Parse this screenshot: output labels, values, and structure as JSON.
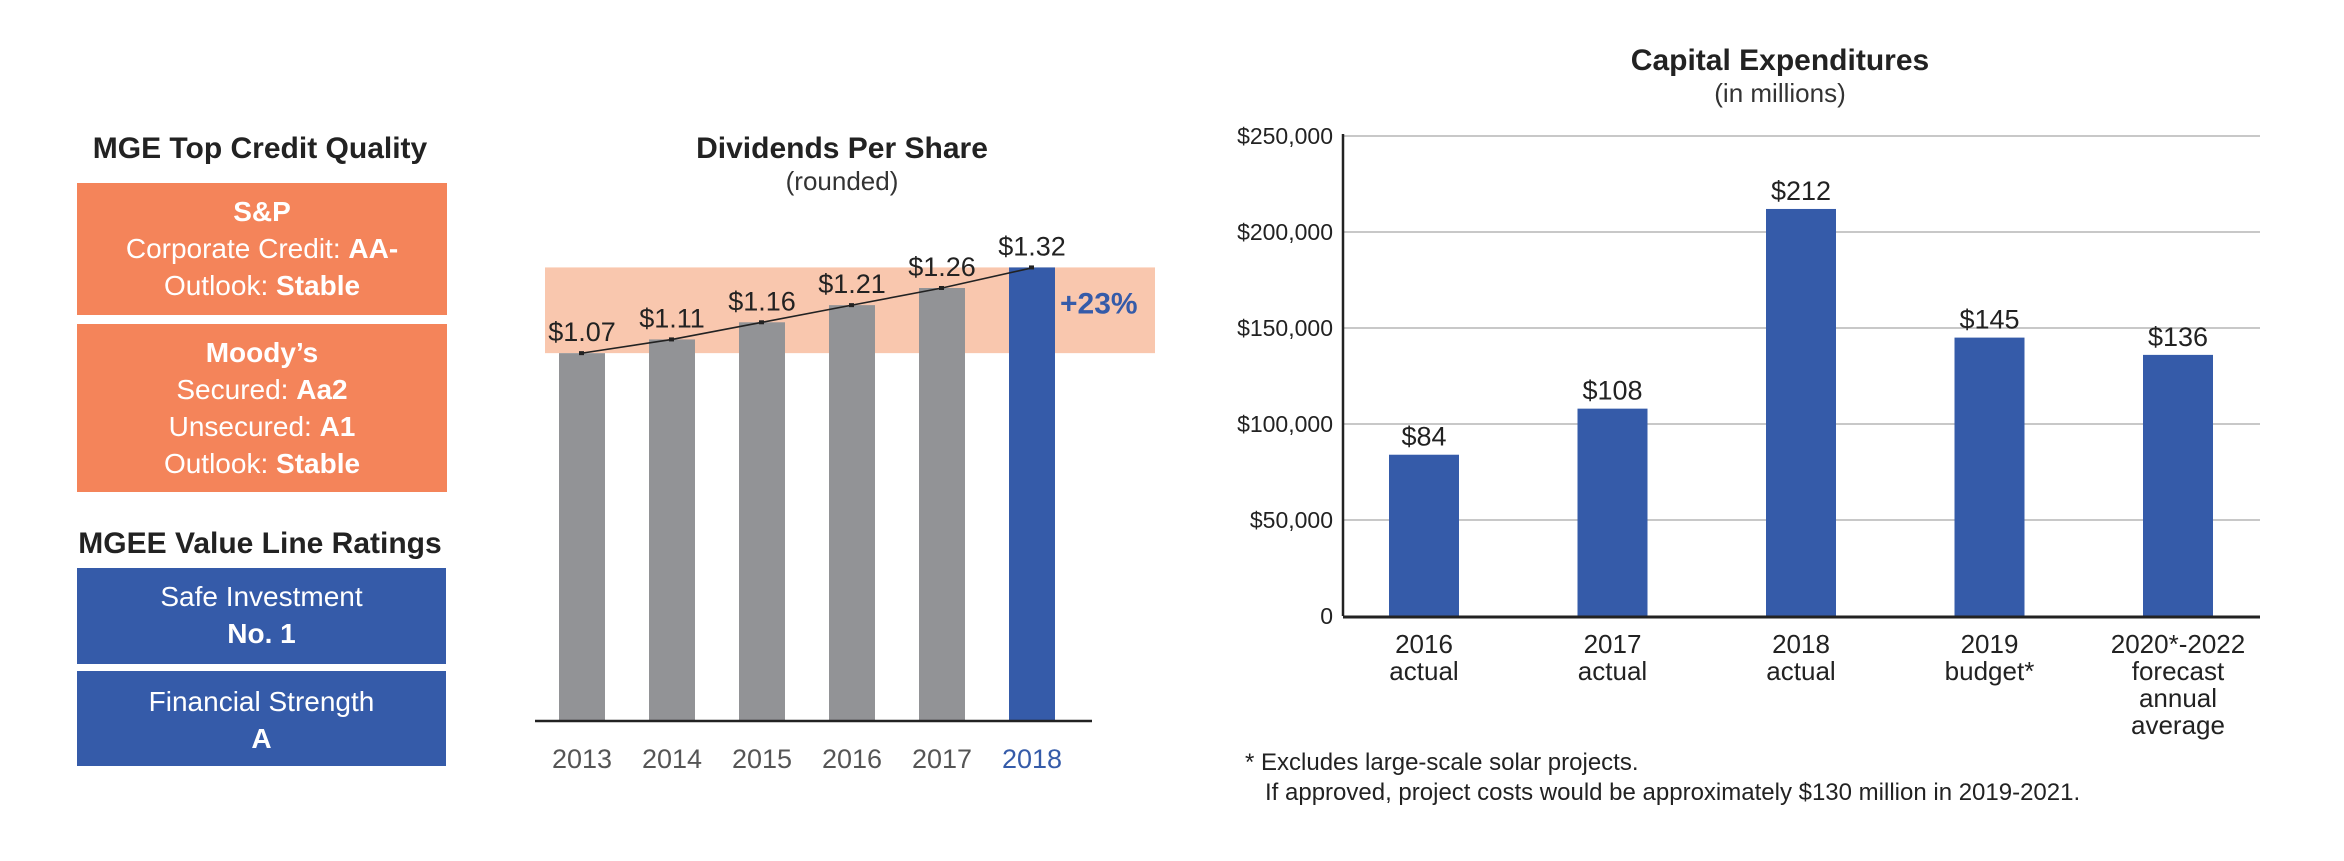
{
  "credit": {
    "title": "MGE Top Credit Quality",
    "sp": {
      "heading": "S&P",
      "corp_label": "Corporate Credit: ",
      "corp_value": "AA-",
      "outlook_label": "Outlook: ",
      "outlook_value": "Stable"
    },
    "moodys": {
      "heading": "Moody’s",
      "secured_label": "Secured: ",
      "secured_value": "Aa2",
      "unsecured_label": "Unsecured: ",
      "unsecured_value": "A1",
      "outlook_label": "Outlook: ",
      "outlook_value": "Stable"
    }
  },
  "valueline": {
    "title": "MGEE Value Line Ratings",
    "safe_label": "Safe Investment",
    "safe_value": "No. 1",
    "fin_label": "Financial Strength",
    "fin_value": "A"
  },
  "colors": {
    "orange": "#f4845a",
    "blue": "#355ba9",
    "gray": "#929396",
    "band": "#f9c7ae"
  },
  "chart_data": [
    {
      "type": "bar",
      "title": "Dividends Per Share",
      "subtitle": "(rounded)",
      "categories": [
        "2013",
        "2014",
        "2015",
        "2016",
        "2017",
        "2018"
      ],
      "values": [
        1.07,
        1.11,
        1.16,
        1.21,
        1.26,
        1.32
      ],
      "labels": [
        "$1.07",
        "$1.11",
        "$1.16",
        "$1.21",
        "$1.26",
        "$1.32"
      ],
      "highlight_index": 5,
      "annotation": "+23%",
      "trend_line": true,
      "ylim": [
        0,
        1.4
      ]
    },
    {
      "type": "bar",
      "title": "Capital Expenditures",
      "subtitle": "(in millions)",
      "categories": [
        [
          "2016",
          "actual"
        ],
        [
          "2017",
          "actual"
        ],
        [
          "2018",
          "actual"
        ],
        [
          "2019",
          "budget*"
        ],
        [
          "2020*-2022",
          "forecast",
          "annual",
          "average"
        ]
      ],
      "values": [
        84,
        108,
        212,
        145,
        136
      ],
      "labels": [
        "$84",
        "$108",
        "$212",
        "$145",
        "$136"
      ],
      "yticks": [
        "0",
        "$50,000",
        "$100,000",
        "$150,000",
        "$200,000",
        "$250,000"
      ],
      "ylim": [
        0,
        250
      ],
      "grid": true,
      "footnote_1": "* Excludes large-scale solar projects.",
      "footnote_2": "If approved, project costs would be approximately $130 million in 2019-2021."
    }
  ]
}
